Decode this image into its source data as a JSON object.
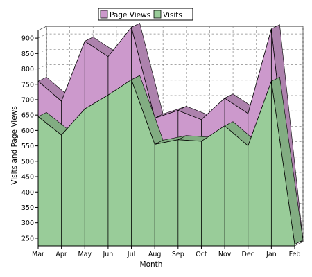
{
  "chart_data": {
    "type": "area",
    "style": "3d-stacked-depth",
    "x_categories": [
      "Mar",
      "Apr",
      "May",
      "Jun",
      "Jul",
      "Aug",
      "Sep",
      "Oct",
      "Nov",
      "Dec",
      "Jan",
      "Feb"
    ],
    "series": [
      {
        "name": "Page Views",
        "color": "#cc99cc",
        "values": [
          760,
          695,
          890,
          840,
          935,
          640,
          665,
          635,
          705,
          655,
          930,
          230
        ]
      },
      {
        "name": "Visits",
        "color": "#99cc99",
        "values": [
          645,
          585,
          670,
          715,
          765,
          555,
          570,
          565,
          615,
          550,
          760,
          230
        ]
      }
    ],
    "xlabel": "Month",
    "ylabel": "Visits and Page Views",
    "y_ticks": [
      250,
      300,
      350,
      400,
      450,
      500,
      550,
      600,
      650,
      700,
      750,
      800,
      850,
      900
    ],
    "ylim": [
      225,
      925
    ],
    "grid": true,
    "legend_position": "top-center"
  }
}
